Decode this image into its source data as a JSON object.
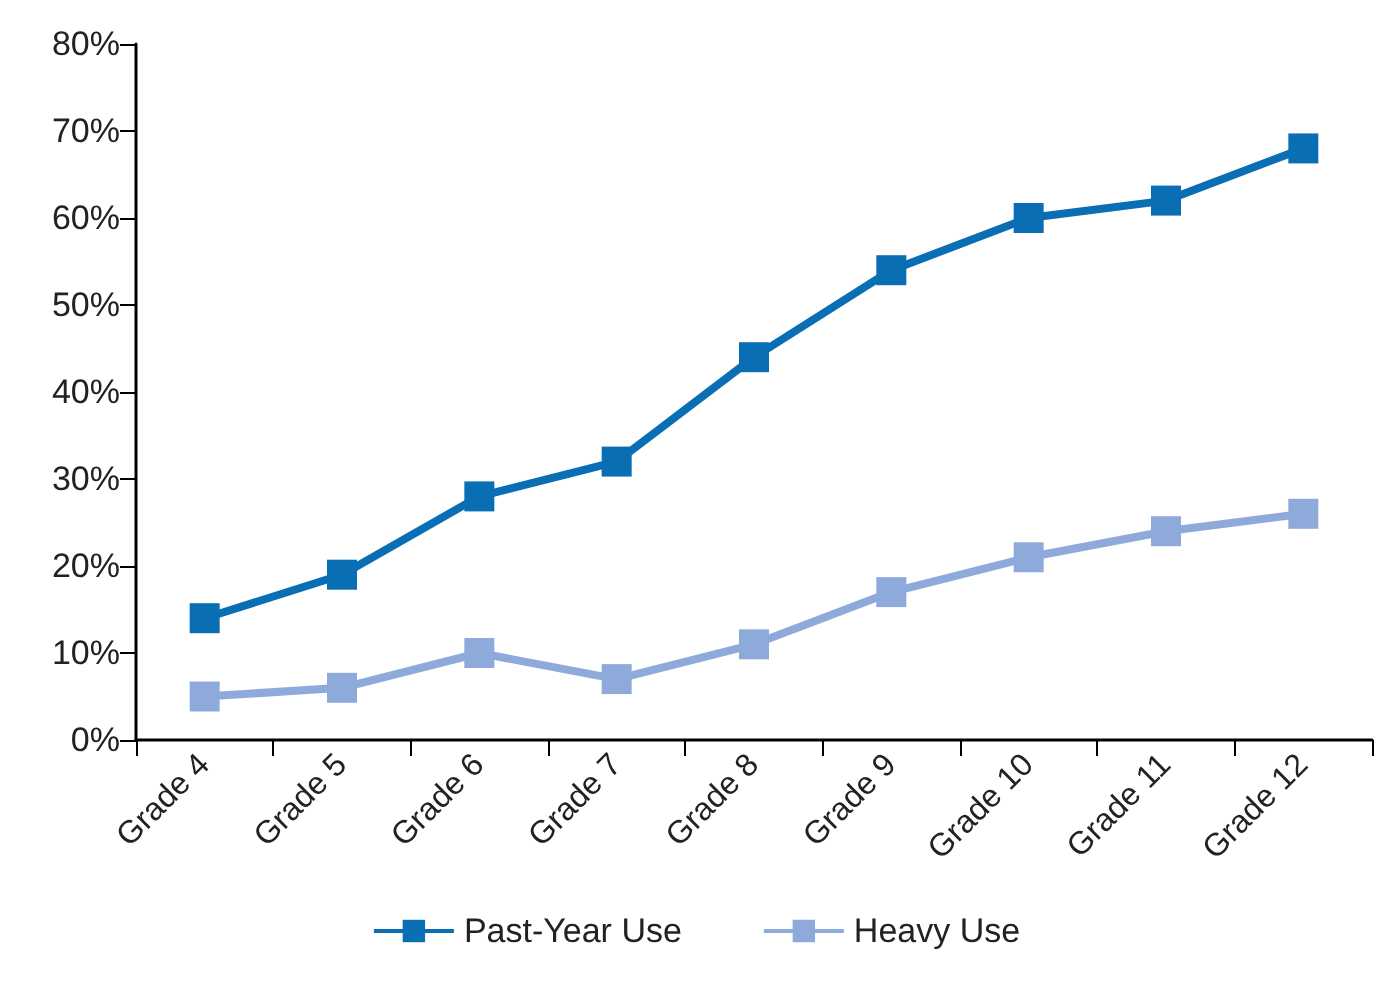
{
  "chart_data": {
    "type": "line",
    "categories": [
      "Grade 4",
      "Grade 5",
      "Grade 6",
      "Grade 7",
      "Grade 8",
      "Grade 9",
      "Grade 10",
      "Grade 11",
      "Grade 12"
    ],
    "series": [
      {
        "name": "Past-Year Use",
        "color": "#0a6eb4",
        "values": [
          14,
          19,
          28,
          32,
          44,
          54,
          60,
          62,
          68
        ]
      },
      {
        "name": "Heavy Use",
        "color": "#8eaadb",
        "values": [
          5,
          6,
          10,
          7,
          11,
          17,
          21,
          24,
          26
        ]
      }
    ],
    "ylim": [
      0,
      80
    ],
    "yticks": [
      {
        "value": 0,
        "label": "0%"
      },
      {
        "value": 10,
        "label": "10%"
      },
      {
        "value": 20,
        "label": "20%"
      },
      {
        "value": 30,
        "label": "30%"
      },
      {
        "value": 40,
        "label": "40%"
      },
      {
        "value": 50,
        "label": "50%"
      },
      {
        "value": 60,
        "label": "60%"
      },
      {
        "value": 70,
        "label": "70%"
      },
      {
        "value": 80,
        "label": "80%"
      }
    ],
    "grid": false,
    "legend": "bottom",
    "marker": "square",
    "line_style": "solid"
  }
}
